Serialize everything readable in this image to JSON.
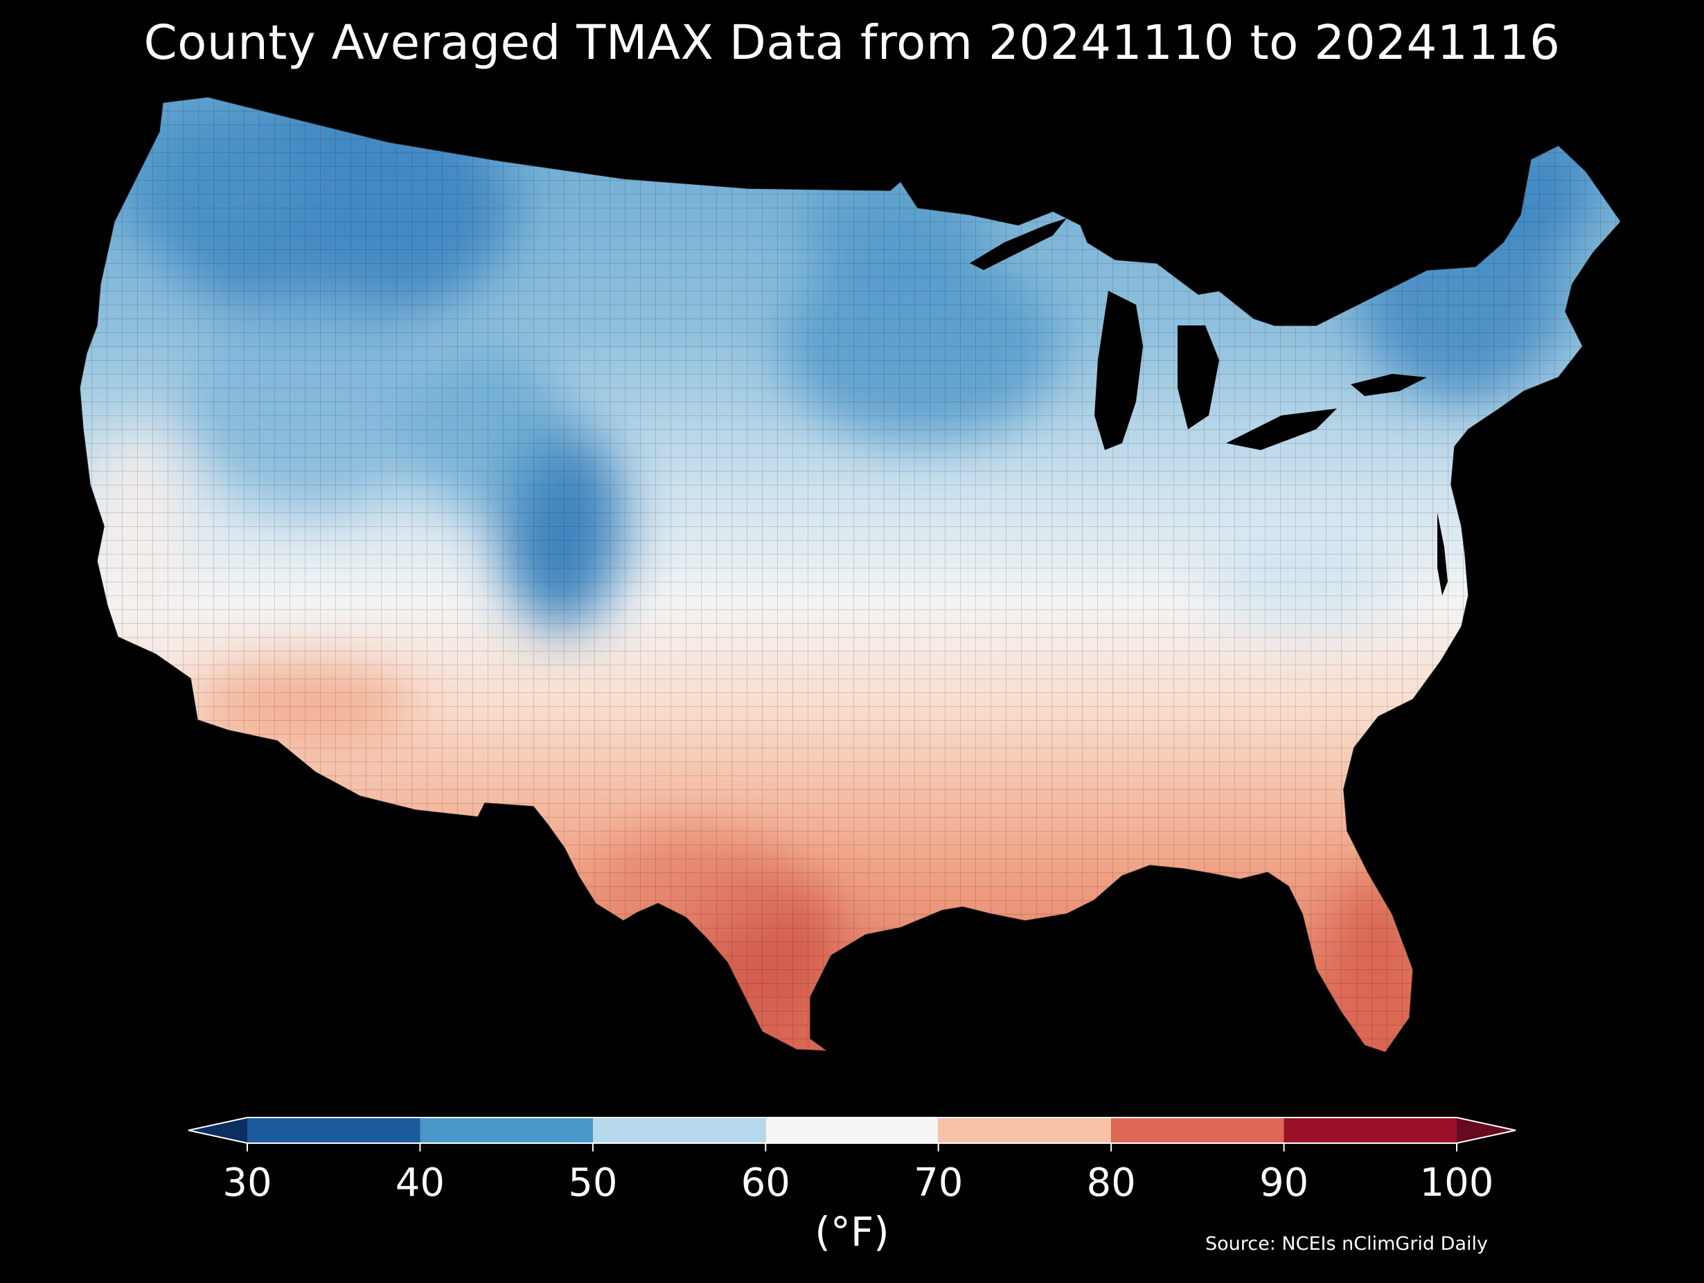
{
  "title": "County Averaged TMAX Data from 20241110 to 20241116",
  "colorbar": {
    "unit_label": "(°F)",
    "ticks": [
      "30",
      "40",
      "50",
      "60",
      "70",
      "80",
      "90",
      "100"
    ],
    "bins": [
      {
        "from": 30,
        "to": 40,
        "color": "#1b5a9b"
      },
      {
        "from": 40,
        "to": 50,
        "color": "#4a98c9"
      },
      {
        "from": 50,
        "to": 60,
        "color": "#b6d8ea"
      },
      {
        "from": 60,
        "to": 70,
        "color": "#f5f5f5"
      },
      {
        "from": 70,
        "to": 80,
        "color": "#f9c1a6"
      },
      {
        "from": 80,
        "to": 90,
        "color": "#dd6954"
      },
      {
        "from": 90,
        "to": 100,
        "color": "#9b1127"
      }
    ],
    "under_color": "#0b2f60",
    "over_color": "#670a1f",
    "extend": "both"
  },
  "source": "Source: NCEIs nClimGrid Daily",
  "map": {
    "region": "Contiguous United States",
    "variable": "TMAX",
    "unit": "°F",
    "regional_values": [
      {
        "region": "Pacific Northwest / Northern Rockies",
        "approx_tmax": 40
      },
      {
        "region": "Colorado Rockies",
        "approx_tmax": 38
      },
      {
        "region": "Northern Plains / Upper Midwest",
        "approx_tmax": 46
      },
      {
        "region": "New England",
        "approx_tmax": 45
      },
      {
        "region": "Great Basin",
        "approx_tmax": 50
      },
      {
        "region": "Central Plains / Ohio Valley",
        "approx_tmax": 60
      },
      {
        "region": "California Central Valley",
        "approx_tmax": 66
      },
      {
        "region": "Southern Plains / Southeast",
        "approx_tmax": 76
      },
      {
        "region": "Desert Southwest",
        "approx_tmax": 78
      },
      {
        "region": "South Texas",
        "approx_tmax": 87
      },
      {
        "region": "Florida Peninsula",
        "approx_tmax": 86
      }
    ]
  }
}
